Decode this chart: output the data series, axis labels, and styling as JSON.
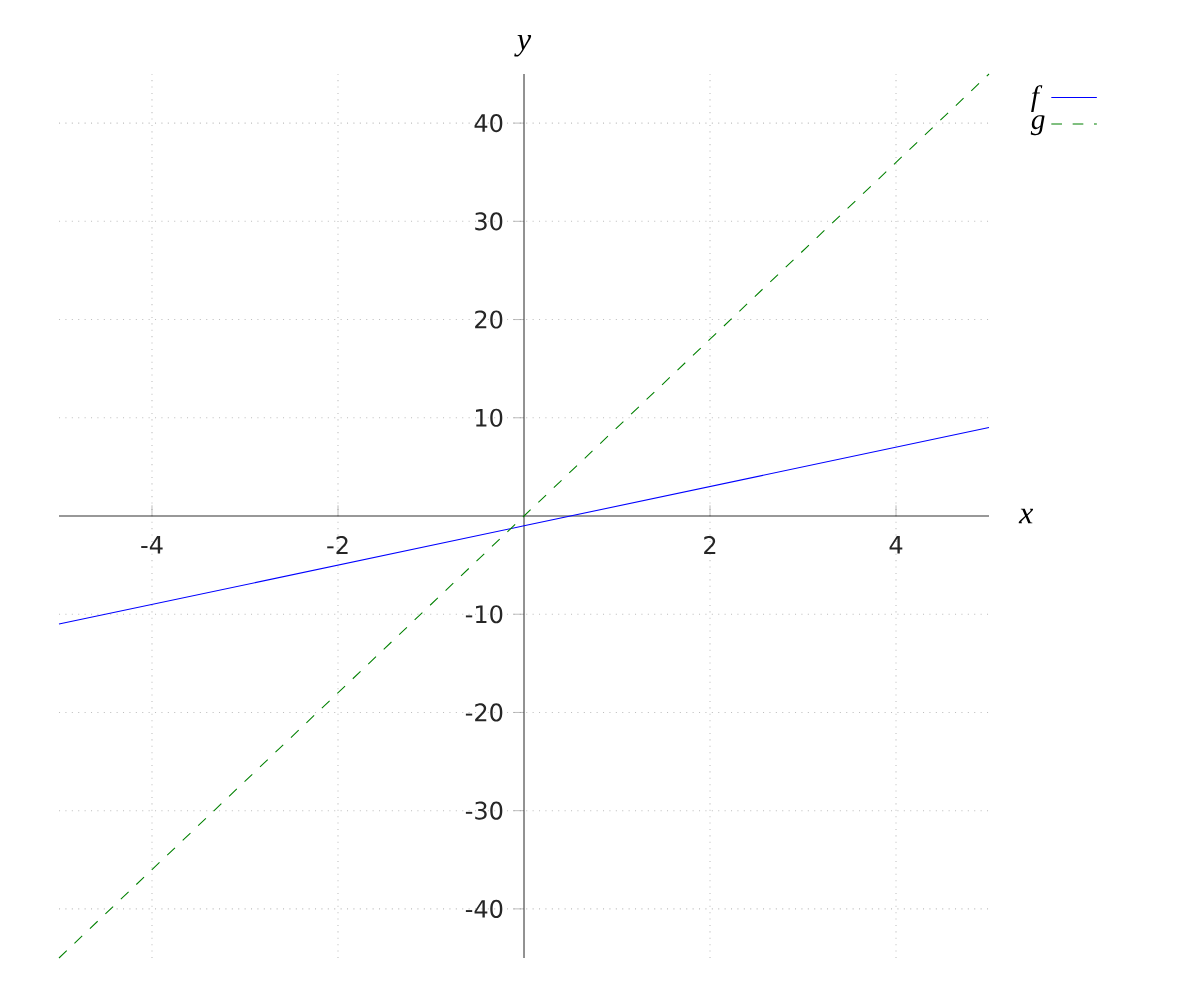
{
  "chart_data": {
    "type": "line",
    "xlabel": "x",
    "ylabel": "y",
    "x": [
      -5,
      0,
      5
    ],
    "series": [
      {
        "name": "f",
        "color": "#0000ff",
        "values": [
          -11,
          -1,
          9
        ],
        "line_style": "solid"
      },
      {
        "name": "g",
        "color": "#008000",
        "values": [
          -45,
          0,
          45
        ],
        "line_style": "dashed"
      }
    ],
    "xlim": [
      -5,
      5
    ],
    "ylim": [
      -45,
      45
    ],
    "xticks": [
      -4,
      -2,
      2,
      4
    ],
    "yticks": [
      -40,
      -30,
      -20,
      -10,
      10,
      20,
      30,
      40
    ],
    "grid": true,
    "legend": "top right",
    "marker": "none"
  }
}
